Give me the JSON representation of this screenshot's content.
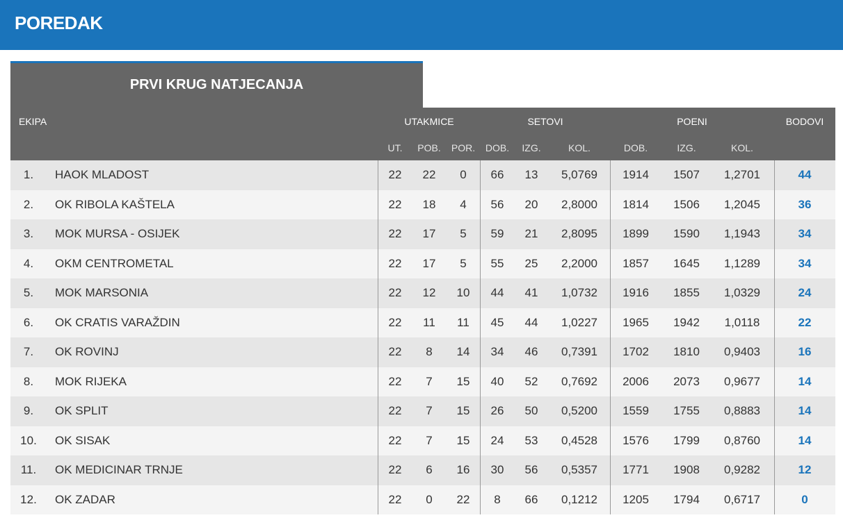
{
  "header": {
    "title": "POREDAK"
  },
  "tab": {
    "title": "PRVI KRUG NATJECANJA"
  },
  "table": {
    "groups": [
      "EKIPA",
      "UTAKMICE",
      "SETOVI",
      "POENI",
      "BODOVI"
    ],
    "subheaders": [
      "UT.",
      "POB.",
      "POR.",
      "DOB.",
      "IZG.",
      "KOL.",
      "DOB.",
      "IZG.",
      "KOL."
    ],
    "rows": [
      [
        "1.",
        "HAOK MLADOST",
        "22",
        "22",
        "0",
        "66",
        "13",
        "5,0769",
        "1914",
        "1507",
        "1,2701",
        "44"
      ],
      [
        "2.",
        "OK RIBOLA KAŠTELA",
        "22",
        "18",
        "4",
        "56",
        "20",
        "2,8000",
        "1814",
        "1506",
        "1,2045",
        "36"
      ],
      [
        "3.",
        "MOK MURSA - OSIJEK",
        "22",
        "17",
        "5",
        "59",
        "21",
        "2,8095",
        "1899",
        "1590",
        "1,1943",
        "34"
      ],
      [
        "4.",
        "OKM CENTROMETAL",
        "22",
        "17",
        "5",
        "55",
        "25",
        "2,2000",
        "1857",
        "1645",
        "1,1289",
        "34"
      ],
      [
        "5.",
        "MOK MARSONIA",
        "22",
        "12",
        "10",
        "44",
        "41",
        "1,0732",
        "1916",
        "1855",
        "1,0329",
        "24"
      ],
      [
        "6.",
        "OK CRATIS VARAŽDIN",
        "22",
        "11",
        "11",
        "45",
        "44",
        "1,0227",
        "1965",
        "1942",
        "1,0118",
        "22"
      ],
      [
        "7.",
        "OK ROVINJ",
        "22",
        "8",
        "14",
        "34",
        "46",
        "0,7391",
        "1702",
        "1810",
        "0,9403",
        "16"
      ],
      [
        "8.",
        "MOK RIJEKA",
        "22",
        "7",
        "15",
        "40",
        "52",
        "0,7692",
        "2006",
        "2073",
        "0,9677",
        "14"
      ],
      [
        "9.",
        "OK SPLIT",
        "22",
        "7",
        "15",
        "26",
        "50",
        "0,5200",
        "1559",
        "1755",
        "0,8883",
        "14"
      ],
      [
        "10.",
        "OK SISAK",
        "22",
        "7",
        "15",
        "24",
        "53",
        "0,4528",
        "1576",
        "1799",
        "0,8760",
        "14"
      ],
      [
        "11.",
        "OK MEDICINAR TRNJE",
        "22",
        "6",
        "16",
        "30",
        "56",
        "0,5357",
        "1771",
        "1908",
        "0,9282",
        "12"
      ],
      [
        "12.",
        "OK ZADAR",
        "22",
        "0",
        "22",
        "8",
        "66",
        "0,1212",
        "1205",
        "1794",
        "0,6717",
        "0"
      ]
    ]
  }
}
